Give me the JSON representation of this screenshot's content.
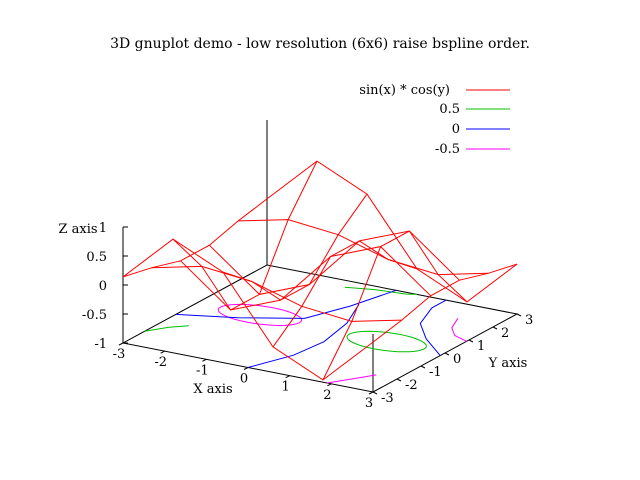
{
  "chart_data": {
    "type": "surface",
    "title": "3D gnuplot demo - low resolution (6x6) raise bspline order.",
    "xlabel": "X axis",
    "ylabel": "Y axis",
    "zlabel": "Z axis",
    "xlim": [
      -3,
      3
    ],
    "ylim": [
      -3,
      3
    ],
    "zlim": [
      -1,
      1
    ],
    "x_ticks": [
      "-3",
      "-2",
      "-1",
      "0",
      "1",
      "2",
      "3"
    ],
    "y_ticks": [
      "-3",
      "-2",
      "-1",
      "0",
      "1",
      "2",
      "3"
    ],
    "z_ticks": [
      "-1",
      "-0.5",
      "0",
      "0.5",
      "1"
    ],
    "grid": false,
    "legend_position": "top-right",
    "series": [
      {
        "name": "sin(x) * cos(y)",
        "kind": "surface-mesh",
        "color": "#ff0000",
        "x": [
          -3,
          -1.8,
          -0.6,
          0.6,
          1.8,
          3
        ],
        "y": [
          -3,
          -1.8,
          -0.6,
          0.6,
          1.8,
          3
        ],
        "z_rows_by_x": [
          [
            0.14,
            0.03,
            -0.12,
            -0.12,
            0.03,
            0.14
          ],
          [
            0.96,
            0.22,
            -0.8,
            -0.8,
            0.22,
            0.96
          ],
          [
            0.56,
            0.13,
            -0.46,
            -0.46,
            0.13,
            0.56
          ],
          [
            -0.56,
            -0.13,
            0.46,
            0.46,
            -0.13,
            -0.56
          ],
          [
            -0.96,
            -0.22,
            0.8,
            0.8,
            -0.22,
            -0.96
          ],
          [
            -0.14,
            -0.03,
            0.12,
            0.12,
            -0.03,
            -0.14
          ]
        ]
      },
      {
        "name": "0.5",
        "kind": "contour",
        "level": 0.5,
        "color": "#00c000"
      },
      {
        "name": "0",
        "kind": "contour",
        "level": 0,
        "color": "#0000ff"
      },
      {
        "name": "-0.5",
        "kind": "contour",
        "level": -0.5,
        "color": "#ff00ff"
      }
    ]
  }
}
